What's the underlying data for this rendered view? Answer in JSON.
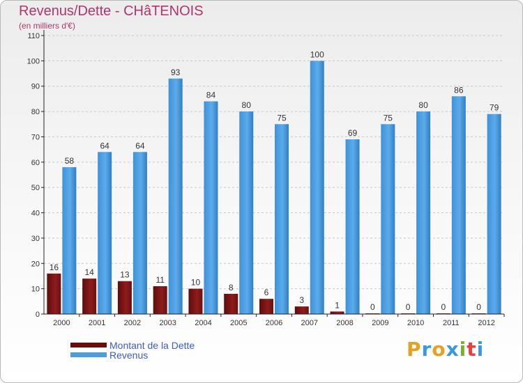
{
  "header": {
    "title": "Revenus/Dette - CHâTENOIS",
    "subtitle": "(en milliers d'€)"
  },
  "brand": {
    "letters": [
      "P",
      "r",
      "o",
      "x",
      "i",
      "t",
      "i"
    ],
    "colors": [
      "#e8a020",
      "#3c9ad8",
      "#e8a020",
      "#3c9ad8",
      "#7ab030",
      "#e84040",
      "#3c9ad8"
    ]
  },
  "colors": {
    "dette": "#8b1a1a",
    "revenus": "#4a9ee0",
    "legend_dette": "#6b0d0d",
    "legend_revenus": "#4a9ee0",
    "axis": "#222222",
    "grid": "#c8c8c8",
    "label": "#333333"
  },
  "chart_data": {
    "type": "bar",
    "categories": [
      "2000",
      "2001",
      "2002",
      "2003",
      "2004",
      "2005",
      "2006",
      "2007",
      "2008",
      "2009",
      "2010",
      "2011",
      "2012"
    ],
    "series": [
      {
        "name": "Montant de la Dette",
        "values": [
          16,
          14,
          13,
          11,
          10,
          8,
          6,
          3,
          1,
          0,
          0,
          0,
          0
        ]
      },
      {
        "name": "Revenus",
        "values": [
          58,
          64,
          64,
          93,
          84,
          80,
          75,
          100,
          69,
          75,
          80,
          86,
          79
        ]
      }
    ],
    "yticks": [
      0,
      10,
      20,
      30,
      40,
      50,
      60,
      70,
      80,
      90,
      100,
      110
    ],
    "ylim": [
      0,
      110
    ],
    "grid": true,
    "legend": "bottom-left"
  }
}
